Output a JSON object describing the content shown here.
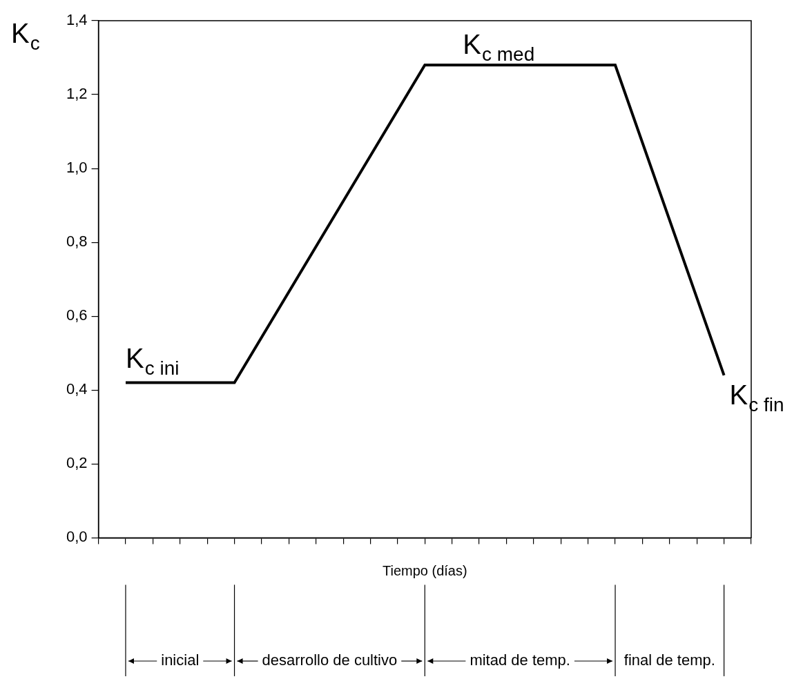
{
  "chart_data": {
    "type": "line",
    "x_label": "Tiempo (días)",
    "y_label": "Kc",
    "x": [
      1,
      5,
      12,
      19,
      23
    ],
    "values": [
      0.42,
      0.42,
      1.28,
      1.28,
      0.44
    ],
    "color": "#000000",
    "xlim": [
      0,
      24
    ],
    "xticks": [
      0,
      1,
      2,
      3,
      4,
      5,
      6,
      7,
      8,
      9,
      10,
      11,
      12,
      13,
      14,
      15,
      16,
      17,
      18,
      19,
      20,
      21,
      22,
      23,
      24
    ],
    "ylim": [
      0,
      1.4
    ],
    "yticks": [
      {
        "value": 0,
        "label": "0,0"
      },
      {
        "value": 0.2,
        "label": "0,2"
      },
      {
        "value": 0.4,
        "label": "0,4"
      },
      {
        "value": 0.6,
        "label": "0,6"
      },
      {
        "value": 0.8,
        "label": "0,8"
      },
      {
        "value": 1.0,
        "label": "1,0"
      },
      {
        "value": 1.2,
        "label": "1,2"
      },
      {
        "value": 1.4,
        "label": "1,4"
      }
    ],
    "tick_labels": "y",
    "grid": false,
    "annotations": [
      "Kc ini",
      "Kc med",
      "Kc fin"
    ],
    "stages": [
      "inicial",
      "desarrollo de cultivo",
      "mitad de temp.",
      "final de temp."
    ]
  }
}
